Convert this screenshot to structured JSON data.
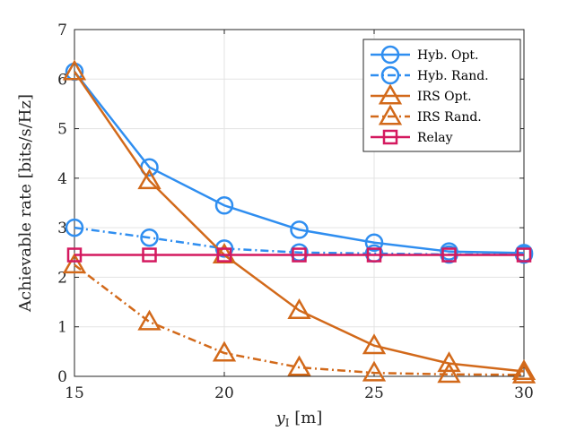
{
  "chart_data": {
    "type": "line",
    "xlabel_main": "y",
    "xlabel_sub": "I",
    "xlabel_unit": " [m]",
    "ylabel": "Achievable rate [bits/s/Hz]",
    "xlim": [
      15,
      30
    ],
    "ylim": [
      0,
      7
    ],
    "xticks": [
      15,
      20,
      25,
      30
    ],
    "yticks": [
      0,
      1,
      2,
      3,
      4,
      5,
      6,
      7
    ],
    "grid": true,
    "legend_position": "top-right",
    "x": [
      15,
      17.5,
      20,
      22.5,
      25,
      27.5,
      30
    ],
    "series": [
      {
        "name": "Hyb. Opt.",
        "color": "#2f8ef0",
        "dash": "solid",
        "marker": "circle",
        "values": [
          6.15,
          4.22,
          3.45,
          2.96,
          2.7,
          2.52,
          2.49
        ]
      },
      {
        "name": "Hyb. Rand.",
        "color": "#2f8ef0",
        "dash": "dashdot",
        "marker": "circle",
        "values": [
          3.0,
          2.8,
          2.58,
          2.5,
          2.48,
          2.46,
          2.46
        ]
      },
      {
        "name": "IRS Opt.",
        "color": "#d2691a",
        "dash": "solid",
        "marker": "triangle",
        "values": [
          6.15,
          3.95,
          2.45,
          1.33,
          0.62,
          0.26,
          0.1
        ]
      },
      {
        "name": "IRS Rand.",
        "color": "#d2691a",
        "dash": "dashdot",
        "marker": "triangle",
        "values": [
          2.25,
          1.1,
          0.47,
          0.18,
          0.07,
          0.04,
          0.03
        ]
      },
      {
        "name": "Relay",
        "color": "#d4195f",
        "dash": "solid",
        "marker": "square",
        "values": [
          2.45,
          2.45,
          2.45,
          2.45,
          2.45,
          2.45,
          2.45
        ]
      }
    ]
  }
}
